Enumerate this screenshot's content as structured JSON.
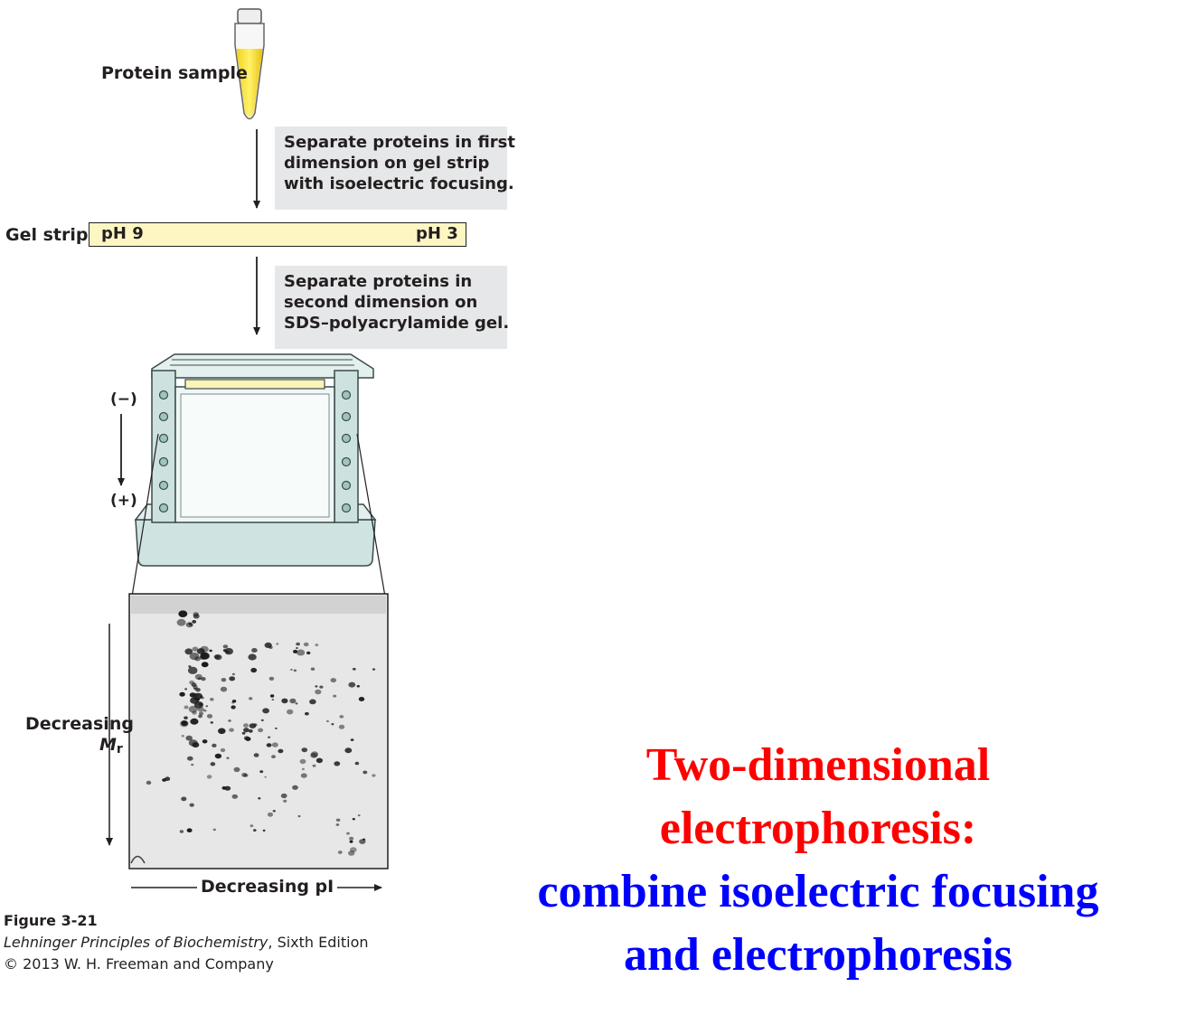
{
  "diagram": {
    "sample_label": "Protein sample",
    "step1": [
      "Separate proteins in first",
      "dimension on gel strip",
      "with isoelectric focusing."
    ],
    "gel_strip_label": "Gel strip",
    "ph_start": "pH 9",
    "ph_end": "pH 3",
    "step2": [
      "Separate proteins in",
      "second dimension on",
      "SDS–polyacrylamide gel."
    ],
    "cathode": "(−)",
    "anode": "(+)",
    "y_axis_label": "Decreasing",
    "y_axis_symbol": "M",
    "y_axis_subscript": "r",
    "x_axis_label": "Decreasing pI"
  },
  "caption": {
    "figure": "Figure 3-21",
    "book_title": "Lehninger Principles of Biochemistry",
    "edition": ", Sixth Edition",
    "copyright": "© 2013 W. H. Freeman and Company"
  },
  "title": {
    "line1": "Two-dimensional",
    "line2": "electrophoresis:",
    "line3": "combine isoelectric focusing",
    "line4": "and electrophoresis",
    "color_heading": "#ff0000",
    "color_subheading": "#0000ff"
  }
}
